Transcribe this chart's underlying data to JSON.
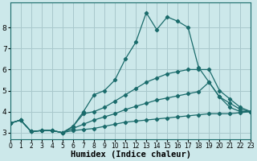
{
  "xlabel": "Humidex (Indice chaleur)",
  "bg_color": "#cce8ea",
  "line_color": "#1a6b6b",
  "grid_color": "#a8c8cc",
  "lines": [
    {
      "x": [
        0,
        1,
        2,
        3,
        4,
        5,
        6,
        7,
        8,
        9,
        10,
        11,
        12,
        13,
        14,
        15,
        16,
        17,
        18,
        19,
        20,
        21,
        22,
        23
      ],
      "y": [
        3.45,
        3.6,
        3.05,
        3.1,
        3.1,
        3.0,
        3.3,
        4.0,
        4.8,
        5.0,
        5.5,
        6.5,
        7.3,
        8.7,
        7.9,
        8.5,
        8.3,
        8.0,
        6.1,
        5.4,
        4.7,
        4.2,
        4.0,
        4.0
      ]
    },
    {
      "x": [
        0,
        1,
        2,
        3,
        4,
        5,
        6,
        7,
        8,
        9,
        10,
        11,
        12,
        13,
        14,
        15,
        16,
        17,
        18,
        19,
        20,
        21,
        22,
        23
      ],
      "y": [
        3.45,
        3.6,
        3.05,
        3.1,
        3.1,
        3.0,
        3.3,
        3.9,
        4.0,
        4.2,
        4.5,
        4.8,
        5.1,
        5.4,
        5.6,
        5.8,
        5.9,
        6.0,
        6.0,
        6.0,
        5.0,
        4.6,
        4.2,
        4.0
      ]
    },
    {
      "x": [
        0,
        1,
        2,
        3,
        4,
        5,
        6,
        7,
        8,
        9,
        10,
        11,
        12,
        13,
        14,
        15,
        16,
        17,
        18,
        19,
        20,
        21,
        22,
        23
      ],
      "y": [
        3.45,
        3.6,
        3.05,
        3.1,
        3.1,
        3.0,
        3.2,
        3.4,
        3.6,
        3.75,
        3.9,
        4.1,
        4.25,
        4.4,
        4.55,
        4.65,
        4.75,
        4.85,
        4.95,
        5.4,
        4.7,
        4.4,
        4.1,
        4.0
      ]
    },
    {
      "x": [
        0,
        1,
        2,
        3,
        4,
        5,
        6,
        7,
        8,
        9,
        10,
        11,
        12,
        13,
        14,
        15,
        16,
        17,
        18,
        19,
        20,
        21,
        22,
        23
      ],
      "y": [
        3.45,
        3.6,
        3.05,
        3.1,
        3.1,
        3.0,
        3.1,
        3.15,
        3.2,
        3.3,
        3.4,
        3.5,
        3.55,
        3.6,
        3.65,
        3.7,
        3.75,
        3.8,
        3.85,
        3.9,
        3.9,
        3.9,
        3.95,
        4.0
      ]
    }
  ],
  "xlim": [
    0,
    23
  ],
  "ylim": [
    2.7,
    9.2
  ],
  "yticks": [
    3,
    4,
    5,
    6,
    7,
    8
  ],
  "xticks": [
    0,
    1,
    2,
    3,
    4,
    5,
    6,
    7,
    8,
    9,
    10,
    11,
    12,
    13,
    14,
    15,
    16,
    17,
    18,
    19,
    20,
    21,
    22,
    23
  ],
  "xlabel_fontsize": 7.5,
  "tick_fontsize": 6.5
}
